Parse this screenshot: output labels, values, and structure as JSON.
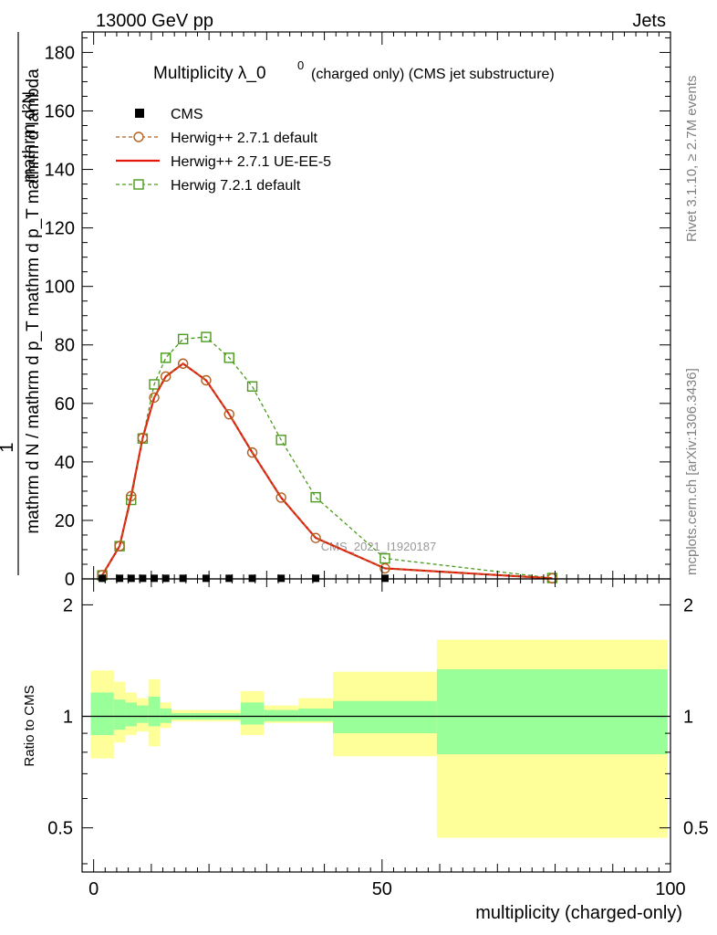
{
  "header": {
    "left": "13000 GeV pp",
    "right": "Jets"
  },
  "side_labels": {
    "rivet": "Rivet 3.1.10, ≥ 2.7M events",
    "mcplots": "mcplots.cern.ch [arXiv:1306.3436]"
  },
  "watermark": "CMS_2021_I1920187",
  "colors": {
    "herwig_pp_default": "#b25f1f",
    "herwig_pp_ueee5": "#e8150c",
    "herwig_721": "#4a9a1c",
    "band_inner": "#99ff99",
    "band_outer": "#ffff99"
  },
  "chart_data": [
    {
      "id": "main",
      "type": "line",
      "title": "Multiplicity λ_0",
      "title_sup": "0",
      "title_suffix": "(charged only) (CMS jet substructure)",
      "ylabel_numerator": "mathrm d²N",
      "ylabel_denominator": "mathrm d N / mathrm d p_T mathrm d p_T mathrm d lambda",
      "ylabel_prefix": "1",
      "xlim": [
        -2,
        100
      ],
      "ylim": [
        0,
        187
      ],
      "yticks": [
        0,
        20,
        40,
        60,
        80,
        100,
        120,
        140,
        160,
        180
      ],
      "legend": [
        {
          "name": "CMS",
          "marker": "square-filled"
        },
        {
          "name": "Herwig++ 2.7.1 default",
          "marker": "circle-open",
          "line": "dashed"
        },
        {
          "name": "Herwig++ 2.7.1 UE-EE-5",
          "marker": "none",
          "line": "solid"
        },
        {
          "name": "Herwig 7.2.1 default",
          "marker": "square-open",
          "line": "dashed"
        }
      ],
      "series": [
        {
          "name": "CMS",
          "x": [
            1.5,
            4.5,
            6.5,
            8.5,
            10.5,
            12.5,
            15.5,
            19.5,
            23.5,
            27.5,
            32.5,
            38.5,
            50.5
          ],
          "y": [
            0.2,
            0.2,
            0.2,
            0.2,
            0.2,
            0.2,
            0.2,
            0.2,
            0.2,
            0.2,
            0.2,
            0.2,
            0.2
          ]
        },
        {
          "name": "Herwig++ 2.7.1 default",
          "x": [
            1.5,
            4.5,
            6.5,
            8.5,
            10.5,
            12.5,
            15.5,
            19.5,
            23.5,
            27.5,
            32.5,
            38.5,
            50.5,
            79.5
          ],
          "y": [
            1.3,
            11.2,
            28.3,
            48.2,
            62.0,
            69.2,
            73.6,
            67.9,
            56.3,
            43.2,
            27.8,
            14.0,
            3.6,
            0.2
          ]
        },
        {
          "name": "Herwig++ 2.7.1 UE-EE-5",
          "x": [
            1.5,
            4.5,
            6.5,
            8.5,
            10.5,
            12.5,
            15.5,
            19.5,
            23.5,
            27.5,
            32.5,
            38.5,
            50.5,
            79.5
          ],
          "y": [
            1.3,
            11.2,
            28.3,
            48.2,
            62.0,
            69.2,
            73.6,
            67.9,
            56.3,
            43.2,
            27.8,
            14.0,
            3.6,
            0.2
          ]
        },
        {
          "name": "Herwig 7.2.1 default",
          "x": [
            1.5,
            4.5,
            6.5,
            8.5,
            10.5,
            12.5,
            15.5,
            19.5,
            23.5,
            27.5,
            32.5,
            38.5,
            50.5,
            79.5
          ],
          "y": [
            1.2,
            11.2,
            27.0,
            48.0,
            66.5,
            75.6,
            82.0,
            82.7,
            75.6,
            65.8,
            47.5,
            27.9,
            7.0,
            0.3
          ]
        }
      ]
    },
    {
      "id": "ratio",
      "type": "area",
      "ylabel": "Ratio to CMS",
      "xlabel": "multiplicity (charged-only)",
      "xlim": [
        -2,
        100
      ],
      "ylim": [
        0.38,
        2.35
      ],
      "ylog": true,
      "xticks": [
        0,
        50,
        100
      ],
      "yticks": [
        0.5,
        1,
        2
      ],
      "ytick_labels": [
        "0.5",
        "1",
        "2"
      ],
      "reference_line": 1,
      "bands": {
        "edges": [
          -0.5,
          3.5,
          5.5,
          7.5,
          9.5,
          11.5,
          13.5,
          17.5,
          21.5,
          25.5,
          29.5,
          35.5,
          41.5,
          59.5,
          99.5
        ],
        "inner_lo": [
          0.89,
          0.92,
          0.94,
          0.96,
          0.94,
          0.96,
          0.98,
          0.98,
          0.98,
          0.95,
          0.97,
          0.97,
          0.9,
          0.79
        ],
        "inner_hi": [
          1.16,
          1.11,
          1.09,
          1.07,
          1.13,
          1.05,
          1.02,
          1.02,
          1.02,
          1.09,
          1.04,
          1.05,
          1.1,
          1.34
        ],
        "outer_lo": [
          0.77,
          0.85,
          0.89,
          0.91,
          0.83,
          0.93,
          0.97,
          0.97,
          0.97,
          0.89,
          0.96,
          0.96,
          0.78,
          0.47
        ],
        "outer_hi": [
          1.33,
          1.24,
          1.16,
          1.12,
          1.26,
          1.09,
          1.04,
          1.04,
          1.04,
          1.17,
          1.07,
          1.12,
          1.32,
          1.61
        ]
      }
    }
  ]
}
